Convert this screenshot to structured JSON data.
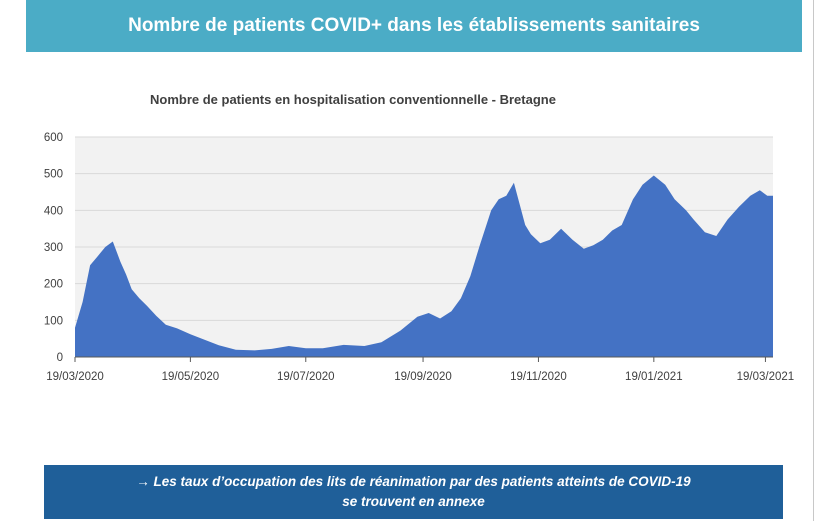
{
  "header": {
    "title": "Nombre de patients COVID+ dans les établissements sanitaires"
  },
  "footer": {
    "line1": "→ Les taux d’occupation des lits de réanimation par des patients atteints de COVID-19",
    "line2": "se trouvent en annexe"
  },
  "colors": {
    "header_bg": "#4bacc6",
    "footer_bg": "#1f5f99",
    "area_fill": "#4472c4",
    "plot_bg": "#f2f2f2"
  },
  "chart_data": {
    "type": "area",
    "title": "Nombre de patients en hospitalisation conventionnelle - Bretagne",
    "xlabel": "",
    "ylabel": "",
    "ylim": [
      0,
      600
    ],
    "yticks": [
      0,
      100,
      200,
      300,
      400,
      500,
      600
    ],
    "xticks": [
      "19/03/2020",
      "19/05/2020",
      "19/07/2020",
      "19/09/2020",
      "19/11/2020",
      "19/01/2021",
      "19/03/2021"
    ],
    "grid": true,
    "legend": "none",
    "series": [
      {
        "x": [
          "2020-03-19",
          "2020-03-23",
          "2020-03-27",
          "2020-03-31",
          "2020-04-04",
          "2020-04-08",
          "2020-04-12",
          "2020-04-15",
          "2020-04-18",
          "2020-04-22",
          "2020-04-26",
          "2020-05-01",
          "2020-05-06",
          "2020-05-12",
          "2020-05-19",
          "2020-05-26",
          "2020-06-03",
          "2020-06-12",
          "2020-06-22",
          "2020-07-01",
          "2020-07-10",
          "2020-07-19",
          "2020-07-28",
          "2020-08-08",
          "2020-08-19",
          "2020-08-28",
          "2020-09-07",
          "2020-09-16",
          "2020-09-22",
          "2020-09-28",
          "2020-10-04",
          "2020-10-09",
          "2020-10-14",
          "2020-10-19",
          "2020-10-25",
          "2020-10-29",
          "2020-11-02",
          "2020-11-06",
          "2020-11-12",
          "2020-11-15",
          "2020-11-20",
          "2020-11-25",
          "2020-12-01",
          "2020-12-07",
          "2020-12-13",
          "2020-12-18",
          "2020-12-23",
          "2020-12-28",
          "2021-01-02",
          "2021-01-08",
          "2021-01-13",
          "2021-01-19",
          "2021-01-25",
          "2021-01-30",
          "2021-02-05",
          "2021-02-09",
          "2021-02-15",
          "2021-02-21",
          "2021-02-27",
          "2021-03-05",
          "2021-03-11",
          "2021-03-16",
          "2021-03-20",
          "2021-03-23"
        ],
        "values": [
          80,
          150,
          250,
          275,
          300,
          315,
          260,
          225,
          185,
          160,
          140,
          112,
          88,
          78,
          62,
          48,
          32,
          20,
          18,
          22,
          30,
          24,
          24,
          33,
          30,
          40,
          72,
          110,
          120,
          105,
          125,
          160,
          220,
          305,
          400,
          430,
          440,
          475,
          360,
          335,
          310,
          320,
          350,
          320,
          295,
          305,
          320,
          345,
          360,
          430,
          470,
          495,
          470,
          430,
          400,
          375,
          340,
          330,
          375,
          410,
          440,
          455,
          440,
          440
        ]
      }
    ]
  }
}
